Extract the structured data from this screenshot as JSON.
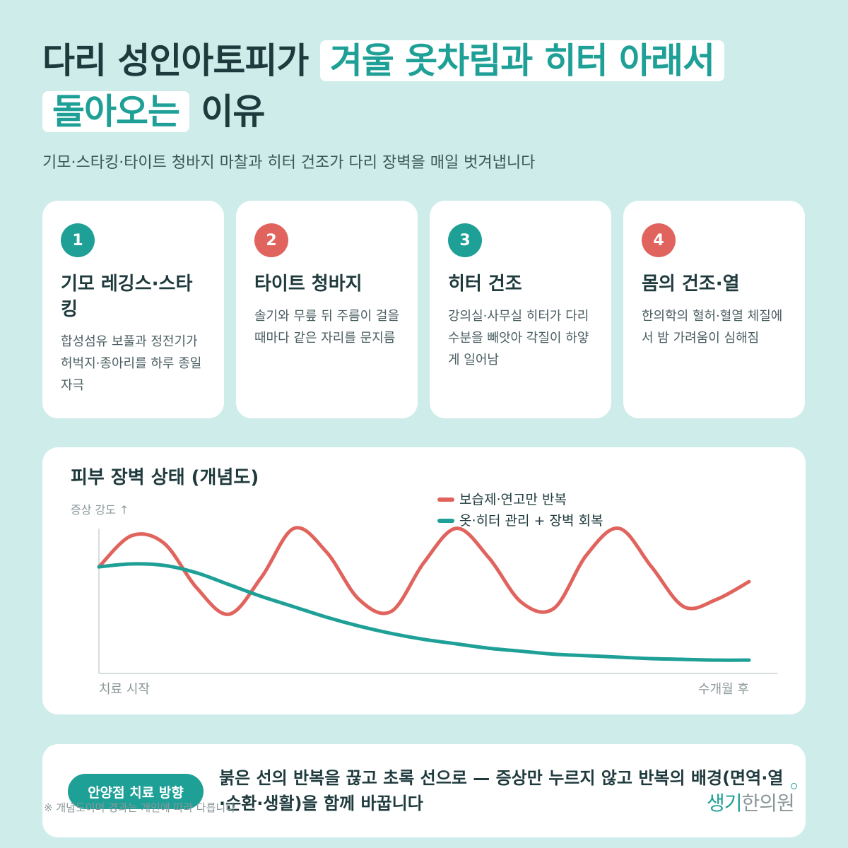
{
  "title": {
    "part1": "다리 성인아토피가 ",
    "highlight1": "겨울 옷차림과 히터 아래서",
    "highlight2": "돌아오는",
    "part2": " 이유"
  },
  "subtitle": "기모·스타킹·타이트 청바지 마찰과 히터 건조가 다리 장벽을 매일 벗겨냅니다",
  "cards": [
    {
      "number": "1",
      "title": "기모 레깅스·스타킹",
      "desc": "합성섬유 보풀과 정전기가 허벅지·종아리를 하루 종일 자극",
      "badge_color": "#1ea097"
    },
    {
      "number": "2",
      "title": "타이트 청바지",
      "desc": "솔기와 무릎 뒤 주름이 걸을 때마다 같은 자리를 문지름",
      "badge_color": "#e0645d"
    },
    {
      "number": "3",
      "title": "히터 건조",
      "desc": "강의실·사무실 히터가 다리 수분을 빼앗아 각질이 하얗게 일어남",
      "badge_color": "#1ea097"
    },
    {
      "number": "4",
      "title": "몸의 건조·열",
      "desc": "한의학의 혈허·혈열 체질에서 밤 가려움이 심해짐",
      "badge_color": "#e0645d"
    }
  ],
  "chart_data": {
    "type": "line",
    "title": "피부 장벽 상태 (개념도)",
    "ylabel": "증상 강도 ↑",
    "x_start_label": "치료 시작",
    "x_end_label": "수개월 후",
    "x": [
      0,
      0.5,
      1,
      1.5,
      2,
      2.5,
      3,
      3.5,
      4,
      4.5,
      5,
      5.5,
      6,
      6.5,
      7,
      7.5,
      8,
      8.5,
      9,
      9.5,
      10
    ],
    "series": [
      {
        "name": "보습제·연고만 반복",
        "color": "#e0645d",
        "values": [
          0.72,
          0.93,
          0.88,
          0.58,
          0.4,
          0.65,
          0.98,
          0.82,
          0.5,
          0.42,
          0.75,
          0.98,
          0.78,
          0.48,
          0.44,
          0.8,
          0.98,
          0.72,
          0.45,
          0.5,
          0.62
        ]
      },
      {
        "name": "옷·히터 관리 + 장벽 회복",
        "color": "#1ea097",
        "values": [
          0.72,
          0.74,
          0.73,
          0.68,
          0.6,
          0.52,
          0.45,
          0.38,
          0.32,
          0.27,
          0.23,
          0.2,
          0.17,
          0.15,
          0.13,
          0.12,
          0.11,
          0.1,
          0.095,
          0.09,
          0.09
        ]
      }
    ],
    "ylim": [
      0,
      1.05
    ],
    "grid": false,
    "legend": "top-center"
  },
  "footer": {
    "pill": "안양점 치료 방향",
    "text": "붉은 선의 반복을 끊고 초록 선으로 — 증상만 누르지 않고 반복의 배경(면역·열·순환·생활)을 함께 바꿉니다"
  },
  "note": "※ 개념도이며 경과는 개인에 따라 다릅니다",
  "logo": {
    "accent": "생기",
    "rest": "한의원"
  }
}
